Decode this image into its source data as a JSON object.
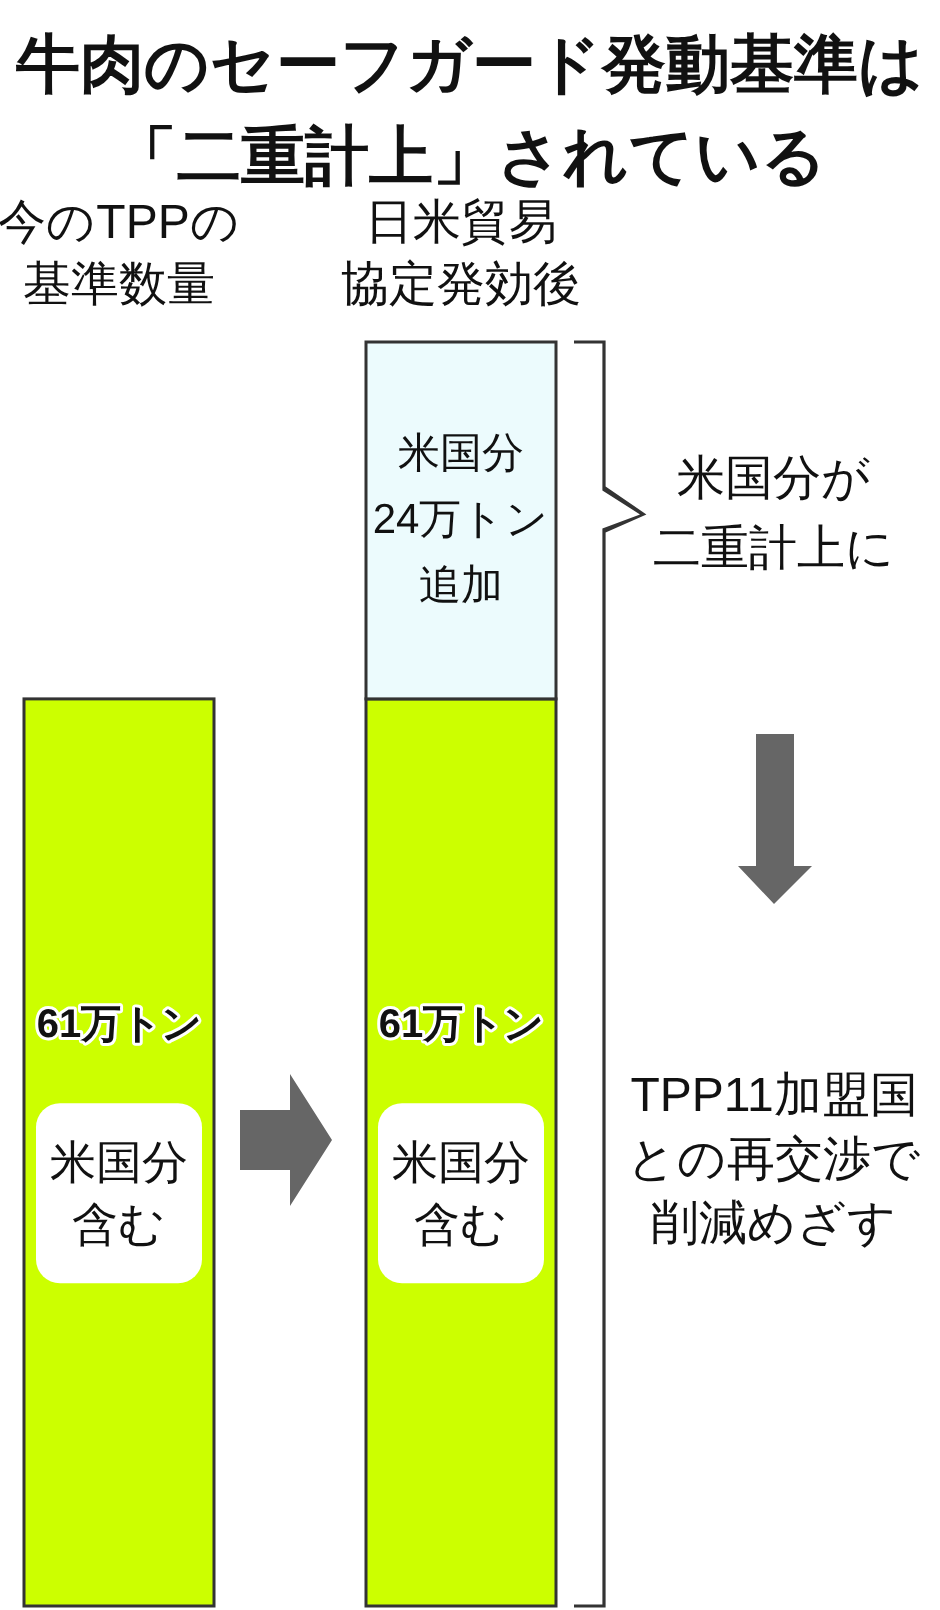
{
  "chart_data": {
    "type": "bar",
    "title": "牛肉のセーフガード発動基準は「二重計上」されている",
    "categories": [
      "今のTPPの基準数量",
      "日米貿易協定発効後"
    ],
    "stacked": true,
    "series": [
      {
        "color": "#ccff00",
        "values": [
          61,
          61
        ],
        "value_labels": [
          "61万トン",
          "61万トン"
        ]
      },
      {
        "color": "#ecfbfd",
        "values": [
          null,
          24
        ],
        "value_labels": [
          null,
          "米国分24万トン追加"
        ]
      }
    ],
    "annotations": [
      "米国分含む",
      "米国分含む",
      "米国分が二重計上に",
      "TPP11加盟国との再交渉で削減めざす"
    ]
  }
}
